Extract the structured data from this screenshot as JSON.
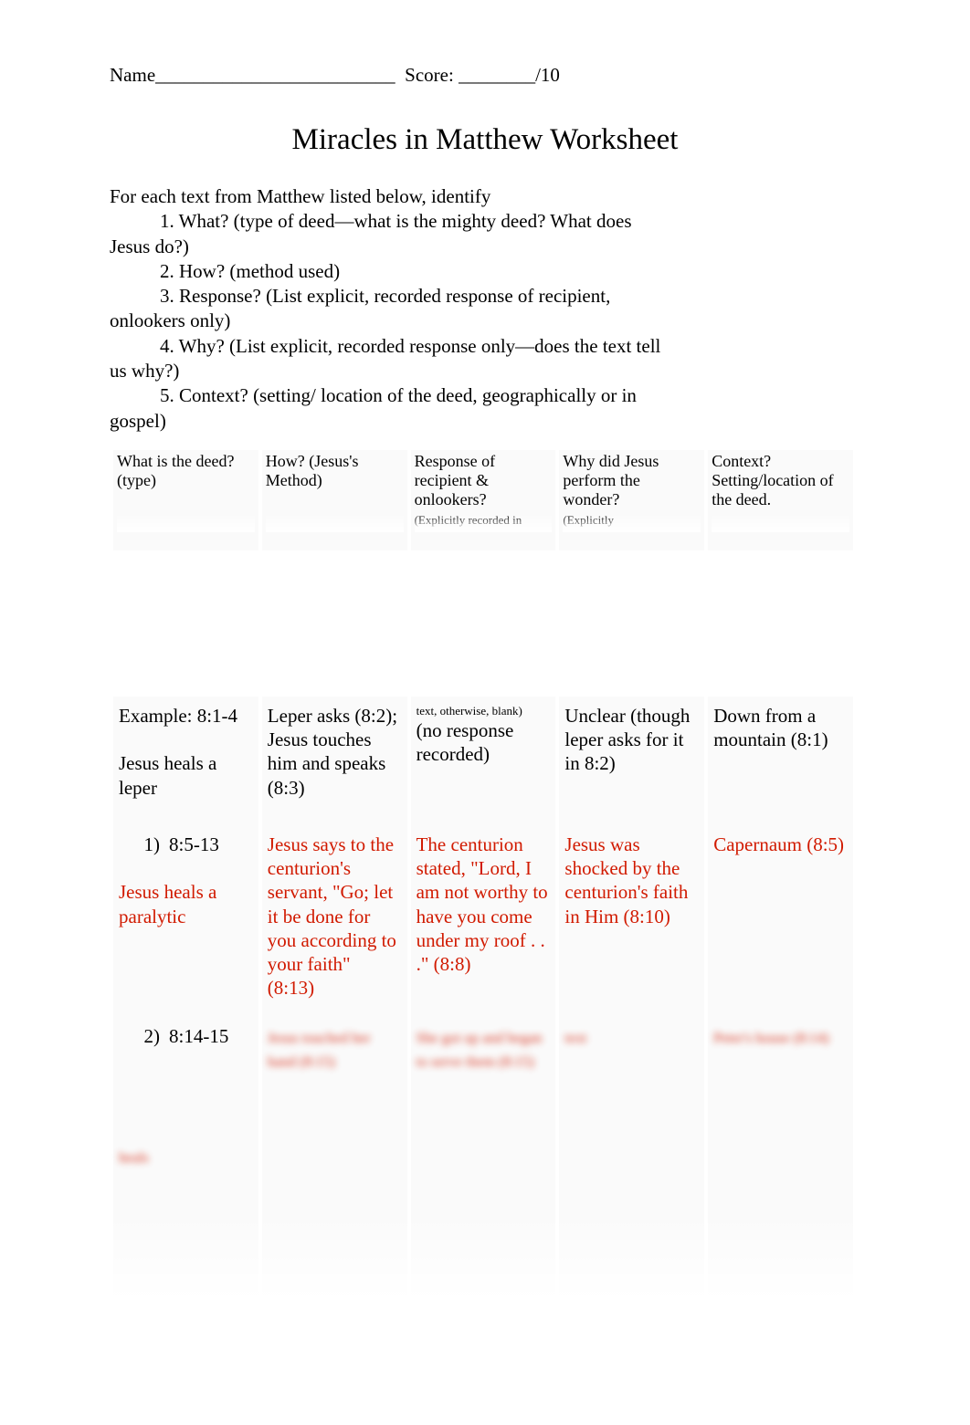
{
  "header": {
    "name_label": "Name",
    "name_blank": "_________________________",
    "score_label": "Score:",
    "score_blank": "________",
    "score_total": "/10"
  },
  "title": "Miracles in Matthew Worksheet",
  "intro": {
    "lead": "For each text from Matthew listed below, identify",
    "items": [
      "1. What? (type of deed—what is the mighty deed? What does",
      "2. How? (method used)",
      "3. Response? (List explicit, recorded response of recipient,",
      "4. Why? (List explicit, recorded response only—does the text tell",
      "5. Context? (setting/ location of the deed, geographically or in"
    ],
    "hangs": [
      "Jesus do?)",
      "",
      "onlookers only)",
      "us why?)",
      "gospel)"
    ]
  },
  "columns": [
    {
      "title": "What is the deed? (type)",
      "sub": ""
    },
    {
      "title": "How? (Jesus's Method)",
      "sub": ""
    },
    {
      "title": "Response of recipient & onlookers?",
      "sub": "(Explicitly recorded in"
    },
    {
      "title": "Why did Jesus perform the wonder?",
      "sub": "(Explicitly"
    },
    {
      "title": "Context? Setting/location of the deed.",
      "sub": ""
    }
  ],
  "mid_note": "text, otherwise, blank)",
  "rows": [
    {
      "red": false,
      "c1": "Example: 8:1-4\n\nJesus heals a leper",
      "c2": "Leper asks (8:2); Jesus touches him and speaks (8:3)",
      "c3": "(no response recorded)",
      "c4": "Unclear (though leper asks for it in 8:2)",
      "c5": "Down from a mountain (8:1)"
    },
    {
      "red": true,
      "num": "1)",
      "ref": "8:5-13",
      "c1_rest": "Jesus heals a paralytic",
      "c2": "Jesus says to the centurion's servant, \"Go; let it be done for you according to your faith\" (8:13)",
      "c3": "The centurion stated, \"Lord, I am not worthy to have you come under my roof . . .\" (8:8)",
      "c4": "Jesus was shocked by the centurion's faith in Him (8:10)",
      "c5": "Capernaum (8:5)"
    },
    {
      "red": true,
      "num": "2)",
      "ref": "8:14-15",
      "c1_rest_blur": "heals",
      "c2_blur": "Jesus touched her hand (8:15)",
      "c3_blur": "She got up and began to serve them (8:15)",
      "c4_blur": "text",
      "c5_blur": "Peter's house (8:14)"
    }
  ]
}
